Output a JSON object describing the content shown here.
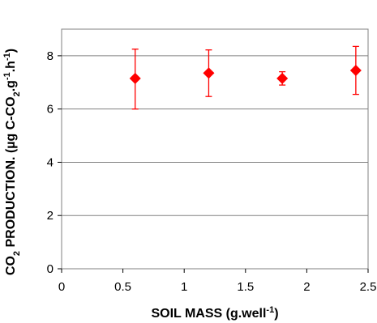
{
  "chart_data": {
    "type": "scatter",
    "title": "",
    "xlabel": {
      "prefix": "SOIL MASS (g.well",
      "sup": "-1",
      "suffix": ")"
    },
    "ylabel": {
      "part1": "CO",
      "sub1": "2",
      "part2": " PRODUCTION. (µg C-CO",
      "sub2": "2",
      "part3": ".g",
      "sup1": "-1",
      "part4": ".h",
      "sup2": "-1",
      "part5": ")"
    },
    "xlim": [
      0,
      2.5
    ],
    "ylim": [
      0,
      9
    ],
    "x_ticks": [
      0,
      0.5,
      1,
      1.5,
      2,
      2.5
    ],
    "x_tick_labels": [
      "0",
      "0.5",
      "1",
      "1.5",
      "2",
      "2.5"
    ],
    "y_ticks": [
      0,
      2,
      4,
      6,
      8
    ],
    "y_tick_labels": [
      "0",
      "2",
      "4",
      "6",
      "8"
    ],
    "grid": {
      "horizontal": true,
      "vertical": false
    },
    "marker": "diamond",
    "color": "#ff0000",
    "points": [
      {
        "x": 0.6,
        "y": 7.15,
        "err_low": 6.0,
        "err_high": 8.25
      },
      {
        "x": 1.2,
        "y": 7.35,
        "err_low": 6.47,
        "err_high": 8.22
      },
      {
        "x": 1.8,
        "y": 7.15,
        "err_low": 6.9,
        "err_high": 7.4
      },
      {
        "x": 2.4,
        "y": 7.45,
        "err_low": 6.55,
        "err_high": 8.35
      }
    ]
  }
}
